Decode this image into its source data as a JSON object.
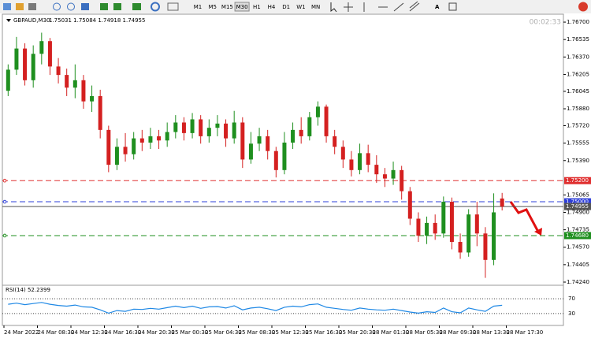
{
  "toolbar": {
    "timeframes": [
      "M1",
      "M5",
      "M15",
      "M30",
      "H1",
      "H4",
      "D1",
      "W1",
      "MN"
    ],
    "active": "M30"
  },
  "chart_data": [
    {
      "type": "candlestick",
      "title": "GBPAUD,M30",
      "subtitle": "1.75031 1.75084 1.74918 1.74955",
      "timer": "00:02:33",
      "up_color": "#1f8f1f",
      "down_color": "#d42020",
      "open": [
        1.7605,
        1.7625,
        1.7645,
        1.7615,
        1.764,
        1.7652,
        1.7628,
        1.762,
        1.7608,
        1.7615,
        1.7595,
        1.76,
        1.7568,
        1.7535,
        1.7552,
        1.7545,
        1.756,
        1.7556,
        1.7562,
        1.7558,
        1.7566,
        1.7575,
        1.7565,
        1.7578,
        1.7562,
        1.757,
        1.7574,
        1.756,
        1.7575,
        1.754,
        1.7555,
        1.7562,
        1.7548,
        1.753,
        1.7556,
        1.7568,
        1.7562,
        1.758,
        1.759,
        1.7562,
        1.7552,
        1.754,
        1.753,
        1.7546,
        1.7535,
        1.7526,
        1.7522,
        1.753,
        1.751,
        1.7484,
        1.7468,
        1.748,
        1.747,
        1.75,
        1.7462,
        1.7452,
        1.7488,
        1.747,
        1.7445,
        1.75031
      ],
      "high": [
        1.763,
        1.7656,
        1.765,
        1.7648,
        1.766,
        1.7655,
        1.7636,
        1.7626,
        1.763,
        1.762,
        1.761,
        1.7606,
        1.7572,
        1.756,
        1.7565,
        1.7566,
        1.7568,
        1.757,
        1.7568,
        1.7575,
        1.7582,
        1.758,
        1.7584,
        1.7582,
        1.7578,
        1.7582,
        1.7578,
        1.7586,
        1.758,
        1.7566,
        1.757,
        1.7568,
        1.7552,
        1.7566,
        1.7575,
        1.758,
        1.7585,
        1.7595,
        1.7592,
        1.7568,
        1.7558,
        1.7548,
        1.7555,
        1.7554,
        1.7544,
        1.7532,
        1.7538,
        1.7534,
        1.7514,
        1.749,
        1.7486,
        1.7488,
        1.7505,
        1.7504,
        1.747,
        1.7493,
        1.75,
        1.7476,
        1.7508,
        1.75084
      ],
      "low": [
        1.76,
        1.762,
        1.761,
        1.7608,
        1.763,
        1.762,
        1.7612,
        1.76,
        1.7598,
        1.7588,
        1.7585,
        1.756,
        1.7528,
        1.753,
        1.7538,
        1.754,
        1.7548,
        1.755,
        1.755,
        1.7552,
        1.756,
        1.7558,
        1.756,
        1.7555,
        1.7556,
        1.7562,
        1.7552,
        1.7555,
        1.7532,
        1.7536,
        1.7548,
        1.754,
        1.7523,
        1.7526,
        1.755,
        1.7555,
        1.7558,
        1.7572,
        1.7556,
        1.7545,
        1.7532,
        1.7524,
        1.7526,
        1.7528,
        1.7518,
        1.7514,
        1.7516,
        1.7502,
        1.7478,
        1.7462,
        1.746,
        1.7464,
        1.7466,
        1.7455,
        1.7446,
        1.7448,
        1.7458,
        1.7428,
        1.744,
        1.74918
      ],
      "close": [
        1.7625,
        1.7645,
        1.7615,
        1.764,
        1.7652,
        1.7628,
        1.762,
        1.7608,
        1.7615,
        1.7595,
        1.76,
        1.7568,
        1.7535,
        1.7552,
        1.7545,
        1.756,
        1.7556,
        1.7562,
        1.7558,
        1.7566,
        1.7575,
        1.7565,
        1.7578,
        1.7562,
        1.757,
        1.7574,
        1.756,
        1.7575,
        1.754,
        1.7555,
        1.7562,
        1.7548,
        1.753,
        1.7556,
        1.7568,
        1.7562,
        1.758,
        1.759,
        1.7562,
        1.7552,
        1.754,
        1.753,
        1.7546,
        1.7535,
        1.7526,
        1.7522,
        1.753,
        1.751,
        1.7484,
        1.7468,
        1.748,
        1.747,
        1.75,
        1.7462,
        1.7452,
        1.7488,
        1.747,
        1.7445,
        1.749,
        1.74955
      ],
      "xtick_labels": [
        "24 Mar 2022",
        "24 Mar 08:30",
        "24 Mar 12:30",
        "24 Mar 16:30",
        "24 Mar 20:30",
        "25 Mar 00:30",
        "25 Mar 04:30",
        "25 Mar 08:30",
        "25 Mar 12:30",
        "25 Mar 16:30",
        "25 Mar 20:30",
        "28 Mar 01:30",
        "28 Mar 05:30",
        "28 Mar 09:30",
        "28 Mar 13:30",
        "28 Mar 17:30"
      ],
      "ylim": [
        1.74225,
        1.76775
      ],
      "yticks": [
        {
          "value": 1.767,
          "label": "1.76700"
        },
        {
          "value": 1.76535,
          "label": "1.76535"
        },
        {
          "value": 1.7637,
          "label": "1.76370"
        },
        {
          "value": 1.76205,
          "label": "1.76205"
        },
        {
          "value": 1.76045,
          "label": "1.76045"
        },
        {
          "value": 1.7588,
          "label": "1.75880"
        },
        {
          "value": 1.7572,
          "label": "1.75720"
        },
        {
          "value": 1.75555,
          "label": "1.75555"
        },
        {
          "value": 1.7539,
          "label": "1.75390"
        },
        {
          "value": 1.75065,
          "label": "1.75065"
        },
        {
          "value": 1.749,
          "label": "1.74900"
        },
        {
          "value": 1.74735,
          "label": "1.74735"
        },
        {
          "value": 1.7457,
          "label": "1.74570"
        },
        {
          "value": 1.74405,
          "label": "1.74405"
        },
        {
          "value": 1.7424,
          "label": "1.74240"
        }
      ],
      "levels": [
        {
          "value": 1.752,
          "label": "1.75200",
          "color": "#e03030",
          "dashed": true
        },
        {
          "value": 1.75,
          "label": "1.75000",
          "color": "#2e3fd8",
          "dashed": true
        },
        {
          "value": 1.7468,
          "label": "1.74680",
          "color": "#1f8f1f",
          "dashed": true
        },
        {
          "value": 1.74955,
          "label": "1.74955",
          "color": "#555555",
          "dashed": false
        }
      ]
    },
    {
      "type": "line",
      "title": "RSI(14) 52.2399",
      "color": "#1e88e5",
      "values": [
        55,
        58,
        54,
        57,
        60,
        55,
        52,
        50,
        53,
        48,
        47,
        40,
        31,
        38,
        36,
        42,
        41,
        44,
        42,
        46,
        50,
        46,
        50,
        44,
        48,
        49,
        45,
        51,
        40,
        45,
        47,
        43,
        38,
        47,
        50,
        48,
        54,
        56,
        47,
        44,
        41,
        39,
        45,
        42,
        40,
        39,
        42,
        38,
        34,
        31,
        35,
        33,
        45,
        35,
        32,
        45,
        40,
        36,
        50,
        52.2399
      ],
      "ylim": [
        0,
        100
      ],
      "yticks": [
        70,
        30
      ]
    }
  ]
}
